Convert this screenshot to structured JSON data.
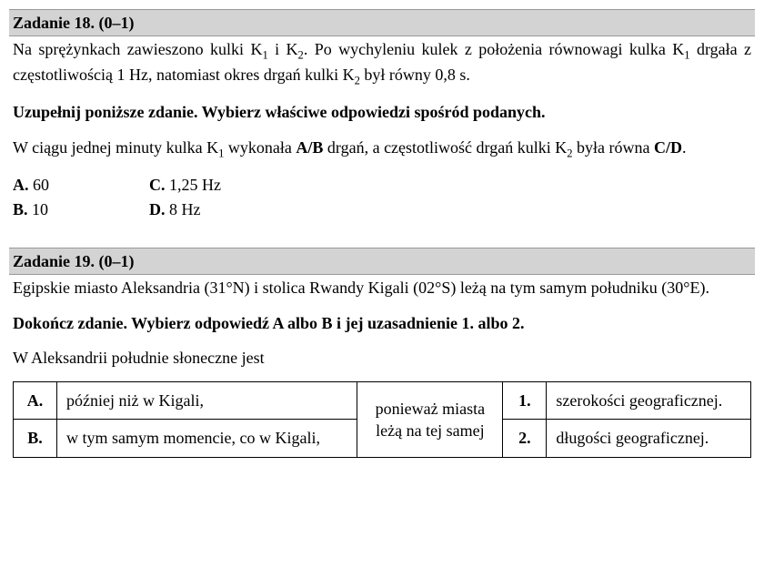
{
  "task18": {
    "header": "Zadanie 18. (0–1)",
    "p1a": "Na sprężynkach zawieszono kulki K",
    "p1b": " i K",
    "p1c": ". Po wychyleniu kulek z położenia równowagi kulka K",
    "p1d": " drgała z częstotliwością 1 Hz, natomiast okres drgań kulki K",
    "p1e": " był równy 0,8 s.",
    "sub1": "1",
    "sub2": "2",
    "instr": "Uzupełnij poniższe zdanie. Wybierz właściwe odpowiedzi spośród podanych.",
    "p2a": "W ciągu jednej minuty kulka K",
    "p2b": " wykonała ",
    "p2c": " drgań, a częstotliwość drgań kulki K",
    "p2d": " była równa ",
    "p2e": ".",
    "ab": "A/B",
    "cd": "C/D",
    "optA_label": "A.",
    "optA_val": " 60",
    "optB_label": "B.",
    "optB_val": " 10",
    "optC_label": "C.",
    "optC_val": " 1,25 Hz",
    "optD_label": "D.",
    "optD_val": " 8 Hz"
  },
  "task19": {
    "header": "Zadanie 19. (0–1)",
    "p1": "Egipskie miasto Aleksandria (31°N) i stolica Rwandy Kigali (02°S) leżą na tym samym południku (30°E).",
    "instr": "Dokończ zdanie. Wybierz odpowiedź A albo B i jej uzasadnienie 1. albo 2.",
    "p2": "W Aleksandrii południe słoneczne jest",
    "table": {
      "A": "A.",
      "B": "B.",
      "optA": "później niż w Kigali,",
      "optB": "w tym samym momencie, co w Kigali,",
      "mid": "ponieważ miasta leżą na tej samej",
      "n1": "1.",
      "n2": "2.",
      "r1": "szerokości geograficznej.",
      "r2": "długości geograficznej."
    }
  },
  "style": {
    "header_bg": "#d3d3d3",
    "text_color": "#000000",
    "bg_color": "#ffffff",
    "font_family": "Times New Roman",
    "base_font_size_pt": 14,
    "table_border_color": "#000000"
  }
}
